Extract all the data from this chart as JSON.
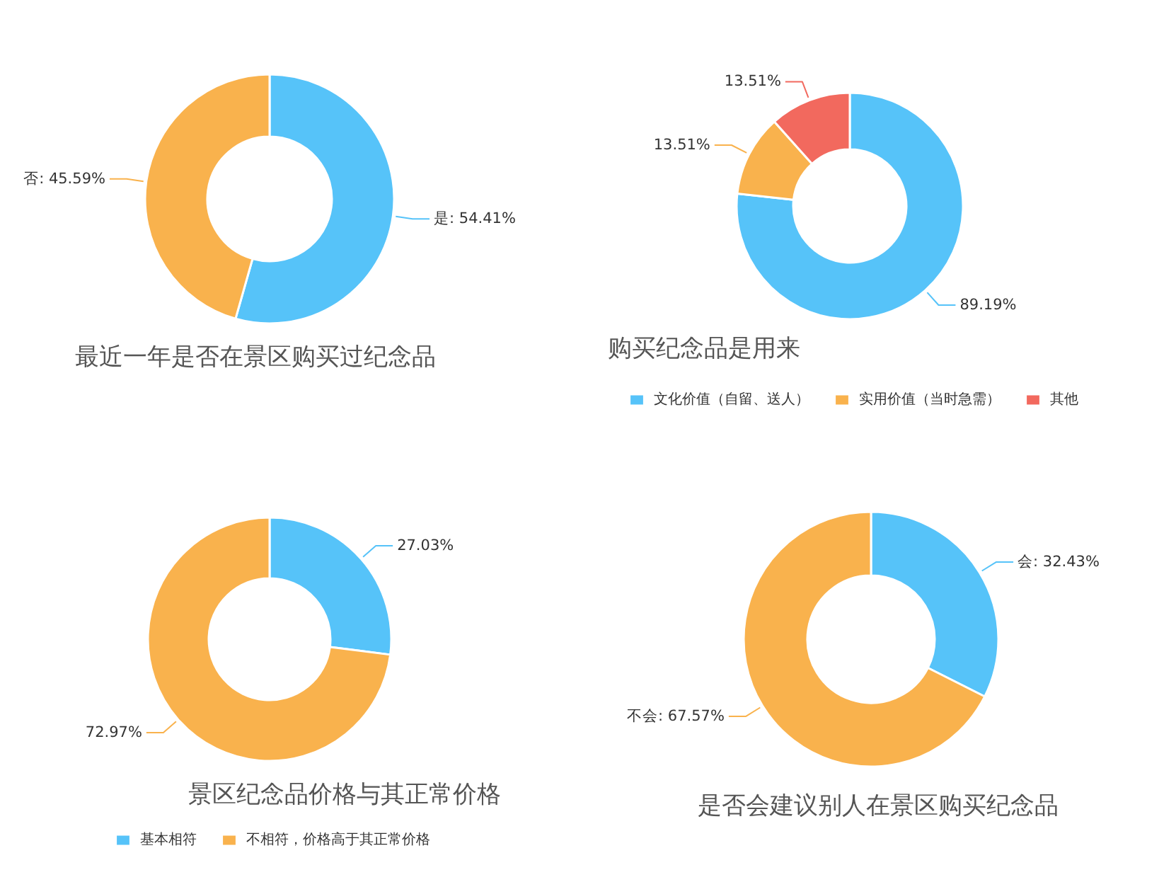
{
  "chart_data": [
    {
      "type": "donut",
      "title": "最近一年是否在景区购买过纪念品",
      "categories": [
        "是",
        "否"
      ],
      "values": [
        54.41,
        45.59
      ],
      "colors": [
        "#56c3f9",
        "#f9b24d"
      ],
      "value_labels": [
        "54.41%",
        "45.59%"
      ],
      "legend": false
    },
    {
      "type": "donut",
      "title": "购买纪念品是用来",
      "categories": [
        "文化价值（自留、送人）",
        "实用价值（当时急需）",
        "其他"
      ],
      "values": [
        89.19,
        13.51,
        13.51
      ],
      "colors": [
        "#56c3f9",
        "#f9b24d",
        "#f2695e"
      ],
      "value_labels": [
        "89.19%",
        "13.51%",
        "13.51%"
      ],
      "legend": "bottom"
    },
    {
      "type": "donut",
      "title": "景区纪念品价格与其正常价格",
      "categories": [
        "基本相符",
        "不相符，价格高于其正常价格"
      ],
      "values": [
        27.03,
        72.97
      ],
      "colors": [
        "#56c3f9",
        "#f9b24d"
      ],
      "value_labels": [
        "27.03%",
        "72.97%"
      ],
      "legend": "bottom"
    },
    {
      "type": "donut",
      "title": "是否会建议别人在景区购买纪念品",
      "categories": [
        "会",
        "不会"
      ],
      "values": [
        32.43,
        67.57
      ],
      "colors": [
        "#56c3f9",
        "#f9b24d"
      ],
      "value_labels": [
        "32.43%",
        "67.57%"
      ],
      "legend": false
    }
  ]
}
